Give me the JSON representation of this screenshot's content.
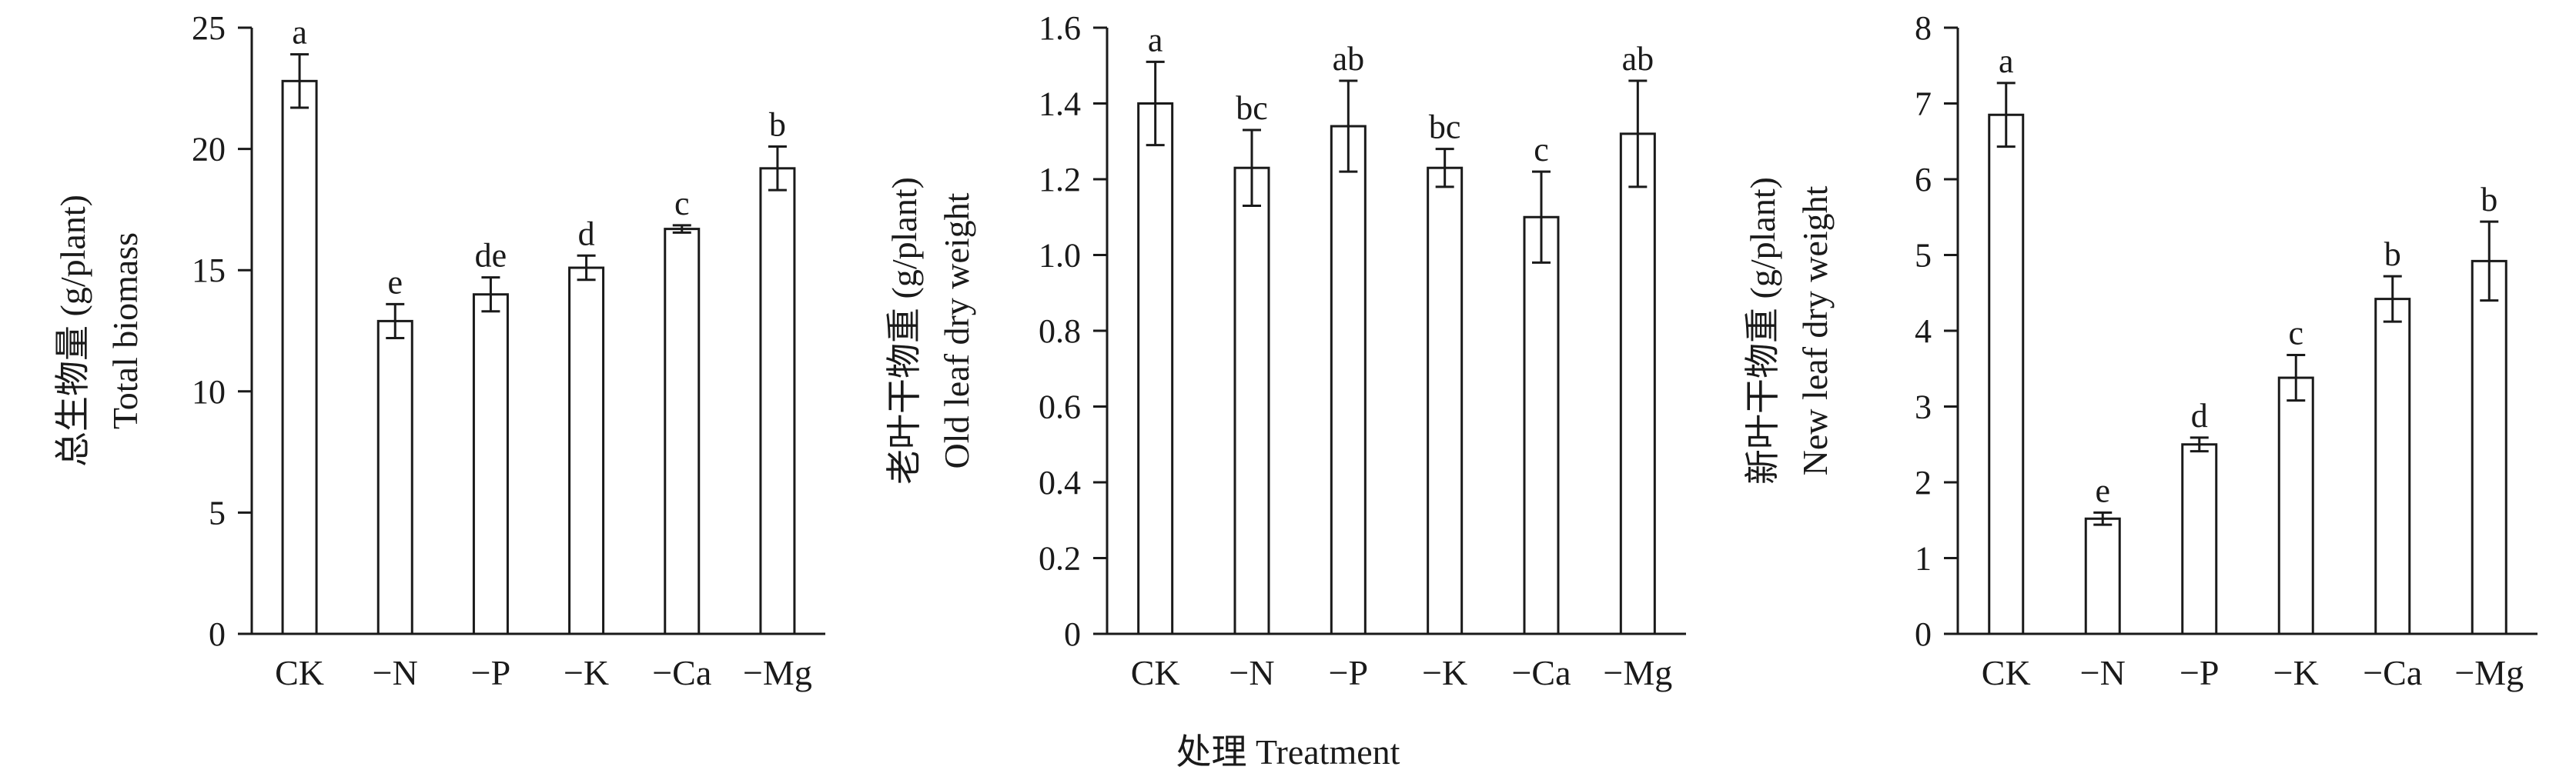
{
  "x_axis_label": "处理 Treatment",
  "chart_data": [
    {
      "type": "bar",
      "ylabel_cn": "总生物量 (g/plant)",
      "ylabel_en": "Total biomass",
      "ylim": [
        0,
        25
      ],
      "yticks": [
        0,
        5,
        10,
        15,
        20,
        25
      ],
      "ytick_labels": [
        "0",
        "5",
        "10",
        "15",
        "20",
        "25"
      ],
      "categories": [
        "CK",
        "−N",
        "−P",
        "−K",
        "−Ca",
        "−Mg"
      ],
      "values": [
        22.8,
        12.9,
        14.0,
        15.1,
        16.7,
        19.2
      ],
      "errors": [
        1.1,
        0.7,
        0.7,
        0.5,
        0.15,
        0.9
      ],
      "letters": [
        "a",
        "e",
        "de",
        "d",
        "c",
        "b"
      ]
    },
    {
      "type": "bar",
      "ylabel_cn": "老叶干物重 (g/plant)",
      "ylabel_en": "Old leaf dry weight",
      "ylim": [
        0,
        1.6
      ],
      "yticks": [
        0,
        0.2,
        0.4,
        0.6,
        0.8,
        1.0,
        1.2,
        1.4,
        1.6
      ],
      "ytick_labels": [
        "0",
        "0.2",
        "0.4",
        "0.6",
        "0.8",
        "1.0",
        "1.2",
        "1.4",
        "1.6"
      ],
      "categories": [
        "CK",
        "−N",
        "−P",
        "−K",
        "−Ca",
        "−Mg"
      ],
      "values": [
        1.4,
        1.23,
        1.34,
        1.23,
        1.1,
        1.32
      ],
      "errors": [
        0.11,
        0.1,
        0.12,
        0.05,
        0.12,
        0.14
      ],
      "letters": [
        "a",
        "bc",
        "ab",
        "bc",
        "c",
        "ab"
      ]
    },
    {
      "type": "bar",
      "ylabel_cn": "新叶干物重 (g/plant)",
      "ylabel_en": "New leaf dry weight",
      "ylim": [
        0,
        8
      ],
      "yticks": [
        0,
        1,
        2,
        3,
        4,
        5,
        6,
        7,
        8
      ],
      "ytick_labels": [
        "0",
        "1",
        "2",
        "3",
        "4",
        "5",
        "6",
        "7",
        "8"
      ],
      "categories": [
        "CK",
        "−N",
        "−P",
        "−K",
        "−Ca",
        "−Mg"
      ],
      "values": [
        6.85,
        1.52,
        2.5,
        3.38,
        4.42,
        4.92
      ],
      "errors": [
        0.42,
        0.08,
        0.09,
        0.3,
        0.3,
        0.52
      ],
      "letters": [
        "a",
        "e",
        "d",
        "c",
        "b",
        "b"
      ]
    }
  ]
}
